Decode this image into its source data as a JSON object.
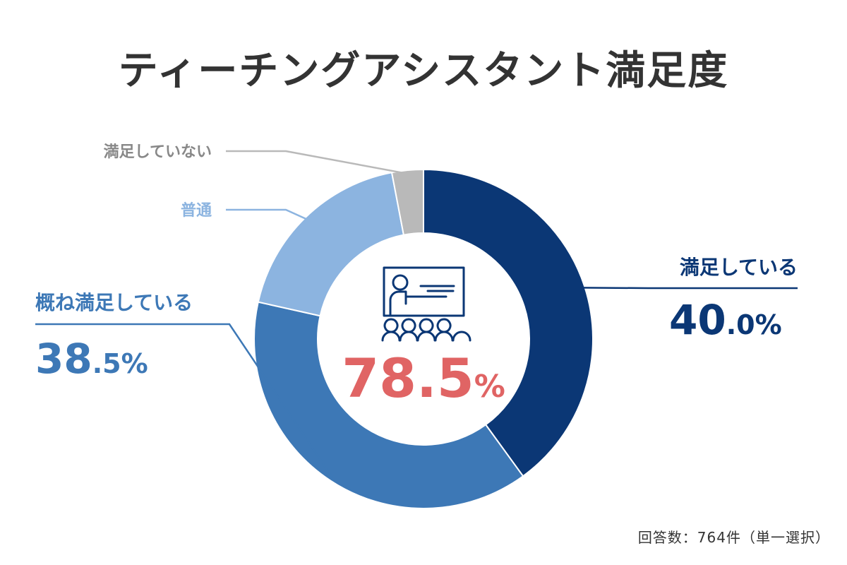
{
  "title": "ティーチングアシスタント満足度",
  "footnote": "回答数：764件（単一選択）",
  "center": {
    "value": "78.5",
    "unit": "%",
    "color": "#e06464"
  },
  "chart_data": {
    "type": "pie",
    "title": "ティーチングアシスタント満足度",
    "slices": [
      {
        "label": "満足している",
        "value": 40.0,
        "value_text": "40.0",
        "color": "#0b3775",
        "show_value": true
      },
      {
        "label": "概ね満足している",
        "value": 38.5,
        "value_text": "38.5",
        "color": "#3d78b6",
        "show_value": true
      },
      {
        "label": "普通",
        "value": 18.5,
        "value_text": "",
        "color": "#8cb4e0",
        "show_value": false
      },
      {
        "label": "満足していない",
        "value": 3.0,
        "value_text": "",
        "color": "#b9b9b9",
        "show_value": false
      }
    ],
    "unit": "%",
    "donut": true
  },
  "colors": {
    "title": "#333333",
    "divider": "#ffffff",
    "icon": "#0b3775"
  },
  "icon": "presentation-audience-icon"
}
